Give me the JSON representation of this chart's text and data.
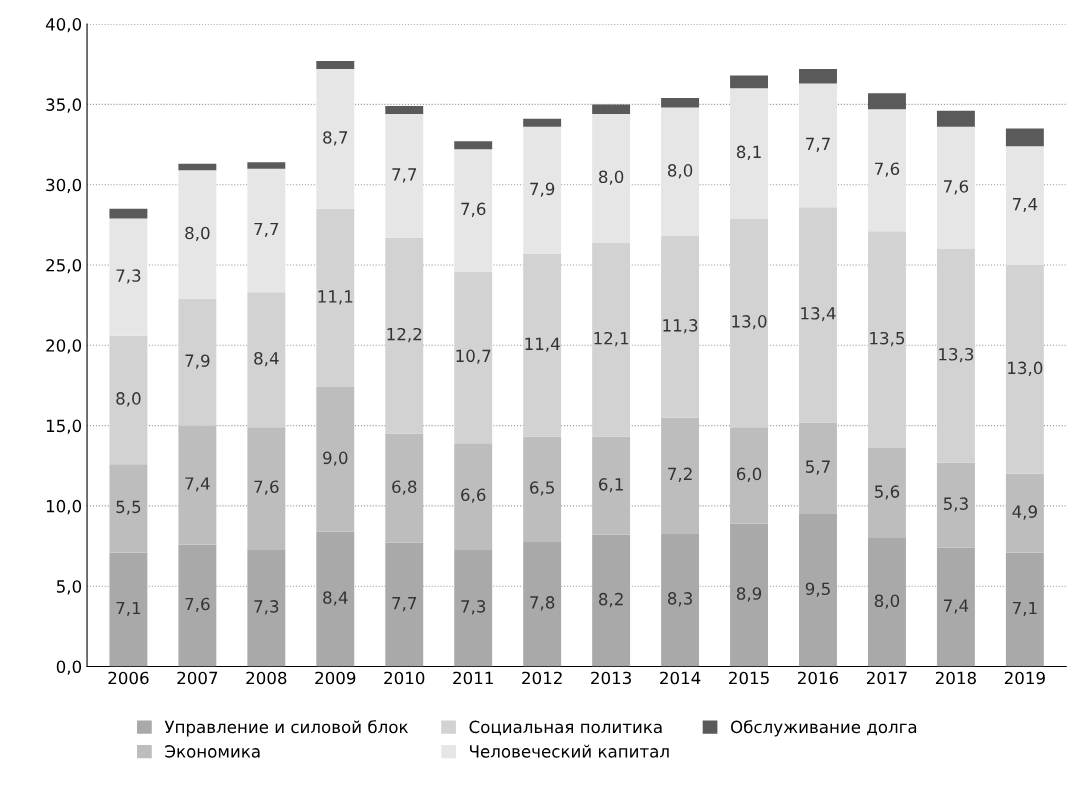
{
  "chart_data": {
    "type": "bar",
    "stacked": true,
    "categories": [
      "2006",
      "2007",
      "2008",
      "2009",
      "2010",
      "2011",
      "2012",
      "2013",
      "2014",
      "2015",
      "2016",
      "2017",
      "2018",
      "2019"
    ],
    "series": [
      {
        "name": "Управление и силовой блок",
        "color": "#a9a9a9",
        "values": [
          7.1,
          7.6,
          7.3,
          8.4,
          7.7,
          7.3,
          7.8,
          8.2,
          8.3,
          8.9,
          9.5,
          8.0,
          7.4,
          7.1
        ],
        "value_labels": [
          "7,1",
          "7,6",
          "7,3",
          "8,4",
          "7,7",
          "7,3",
          "7,8",
          "8,2",
          "8,3",
          "8,9",
          "9,5",
          "8,0",
          "7,4",
          "7,1"
        ]
      },
      {
        "name": "Экономика",
        "color": "#bdbdbd",
        "values": [
          5.5,
          7.4,
          7.6,
          9.0,
          6.8,
          6.6,
          6.5,
          6.1,
          7.2,
          6.0,
          5.7,
          5.6,
          5.3,
          4.9
        ],
        "value_labels": [
          "5,5",
          "7,4",
          "7,6",
          "9,0",
          "6,8",
          "6,6",
          "6,5",
          "6,1",
          "7,2",
          "6,0",
          "5,7",
          "5,6",
          "5,3",
          "4,9"
        ]
      },
      {
        "name": "Социальная политика",
        "color": "#d2d2d2",
        "values": [
          8.0,
          7.9,
          8.4,
          11.1,
          12.2,
          10.7,
          11.4,
          12.1,
          11.3,
          13.0,
          13.4,
          13.5,
          13.3,
          13.0
        ],
        "value_labels": [
          "8,0",
          "7,9",
          "8,4",
          "11,1",
          "12,2",
          "10,7",
          "11,4",
          "12,1",
          "11,3",
          "13,0",
          "13,4",
          "13,5",
          "13,3",
          "13,0"
        ]
      },
      {
        "name": "Человеческий капитал",
        "color": "#e6e6e6",
        "values": [
          7.3,
          8.0,
          7.7,
          8.7,
          7.7,
          7.6,
          7.9,
          8.0,
          8.0,
          8.1,
          7.7,
          7.6,
          7.6,
          7.4
        ],
        "value_labels": [
          "7,3",
          "8,0",
          "7,7",
          "8,7",
          "7,7",
          "7,6",
          "7,9",
          "8,0",
          "8,0",
          "8,1",
          "7,7",
          "7,6",
          "7,6",
          "7,4"
        ]
      },
      {
        "name": "Обслуживание долга",
        "color": "#5a5a5a",
        "values": [
          0.6,
          0.4,
          0.4,
          0.5,
          0.5,
          0.5,
          0.5,
          0.6,
          0.6,
          0.8,
          0.9,
          1.0,
          1.0,
          1.1
        ]
      }
    ],
    "ylim": [
      0,
      40
    ],
    "yticks": [
      {
        "value": 0,
        "label": "0,0"
      },
      {
        "value": 5,
        "label": "5,0"
      },
      {
        "value": 10,
        "label": "10,0"
      },
      {
        "value": 15,
        "label": "15,0"
      },
      {
        "value": 20,
        "label": "20,0"
      },
      {
        "value": 25,
        "label": "25,0"
      },
      {
        "value": 30,
        "label": "30,0"
      },
      {
        "value": 35,
        "label": "35,0"
      },
      {
        "value": 40,
        "label": "40,0"
      }
    ],
    "grid": "y",
    "legend": "bottom"
  }
}
